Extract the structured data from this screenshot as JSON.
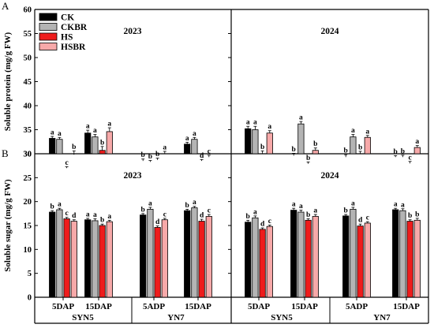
{
  "chart_data": {
    "type": "bar",
    "legend": {
      "placement": "top-left",
      "entries": [
        {
          "name": "CK",
          "color": "#000000"
        },
        {
          "name": "CKBR",
          "color": "#b4b4b4"
        },
        {
          "name": "HS",
          "color": "#ee1c1c"
        },
        {
          "name": "HSBR",
          "color": "#f7a9a9"
        }
      ]
    },
    "bottom_labels": {
      "groups": [
        "5DAP",
        "15DAP",
        "5ADP",
        "15DAP",
        "5DAP",
        "15DAP",
        "5ADP",
        "15DAP"
      ],
      "cultivars": [
        "SYN5",
        "YN7",
        "SYN5",
        "YN7"
      ]
    },
    "panels": [
      {
        "letter": "A",
        "ylabel": "Soluble protein (mg/g FW)",
        "ylim": [
          30,
          60
        ],
        "yticks": [
          30,
          35,
          40,
          45,
          50,
          55,
          60
        ],
        "years": [
          "2023",
          "2024"
        ],
        "values": [
          [
            33.2,
            33.0,
            27.0,
            29.8
          ],
          [
            34.3,
            33.5,
            30.7,
            34.6
          ],
          [
            28.5,
            28.3,
            28.7,
            30.0
          ],
          [
            32.0,
            33.0,
            28.5,
            29.3
          ],
          [
            35.2,
            35.0,
            30.0,
            34.3
          ],
          [
            29.6,
            36.2,
            27.9,
            30.7
          ],
          [
            29.3,
            33.5,
            30.0,
            33.4
          ],
          [
            29.3,
            29.3,
            28.0,
            31.3
          ]
        ],
        "errors": [
          [
            0.4,
            0.4,
            0.3,
            0.8
          ],
          [
            0.6,
            0.5,
            0.8,
            0.8
          ],
          [
            0.4,
            0.3,
            0.4,
            0.5
          ],
          [
            0.4,
            0.4,
            0.3,
            0.4
          ],
          [
            0.5,
            0.7,
            0.6,
            0.5
          ],
          [
            0.5,
            0.5,
            0.4,
            0.5
          ],
          [
            0.5,
            0.5,
            0.5,
            0.4
          ],
          [
            0.3,
            0.4,
            0.4,
            0.4
          ]
        ],
        "letters": [
          [
            "a",
            "a",
            "c",
            "b"
          ],
          [
            "a",
            "a",
            "b",
            "a"
          ],
          [
            "b",
            "b",
            "b",
            "a"
          ],
          [
            "a",
            "a",
            "d",
            "c"
          ],
          [
            "a",
            "a",
            "b",
            "a"
          ],
          [
            "b",
            "a",
            "b",
            "b"
          ],
          [
            "b",
            "a",
            "b",
            "a"
          ],
          [
            "b",
            "b",
            "c",
            "a"
          ]
        ]
      },
      {
        "letter": "B",
        "ylabel": "Soluble sugar (mg/g FW)",
        "ylim": [
          0,
          30
        ],
        "yticks": [
          0,
          5,
          10,
          15,
          20,
          25,
          30
        ],
        "years": [
          "2023",
          "2024"
        ],
        "values": [
          [
            17.8,
            18.3,
            16.4,
            15.9
          ],
          [
            16.2,
            16.0,
            15.0,
            15.8
          ],
          [
            17.2,
            18.4,
            14.6,
            16.2
          ],
          [
            18.1,
            18.7,
            15.9,
            16.9
          ],
          [
            15.7,
            16.6,
            14.2,
            14.8
          ],
          [
            18.2,
            17.8,
            16.1,
            16.9
          ],
          [
            17.0,
            18.4,
            14.9,
            15.5
          ],
          [
            18.3,
            18.1,
            15.9,
            16.1
          ]
        ],
        "errors": [
          [
            0.3,
            0.3,
            0.3,
            0.3
          ],
          [
            0.3,
            0.4,
            0.3,
            0.3
          ],
          [
            0.3,
            0.4,
            0.3,
            0.3
          ],
          [
            0.3,
            0.3,
            0.4,
            0.4
          ],
          [
            0.4,
            0.4,
            0.3,
            0.3
          ],
          [
            0.4,
            0.4,
            0.3,
            0.4
          ],
          [
            0.3,
            0.4,
            0.4,
            0.3
          ],
          [
            0.3,
            0.4,
            0.3,
            0.4
          ]
        ],
        "letters": [
          [
            "b",
            "a",
            "c",
            "d"
          ],
          [
            "a",
            "a",
            "b",
            "a"
          ],
          [
            "b",
            "a",
            "d",
            "c"
          ],
          [
            "b",
            "a",
            "d",
            "c"
          ],
          [
            "b",
            "a",
            "d",
            "c"
          ],
          [
            "a",
            "a",
            "b",
            "a"
          ],
          [
            "b",
            "a",
            "d",
            "c"
          ],
          [
            "a",
            "a",
            "b",
            "b"
          ]
        ]
      }
    ]
  }
}
